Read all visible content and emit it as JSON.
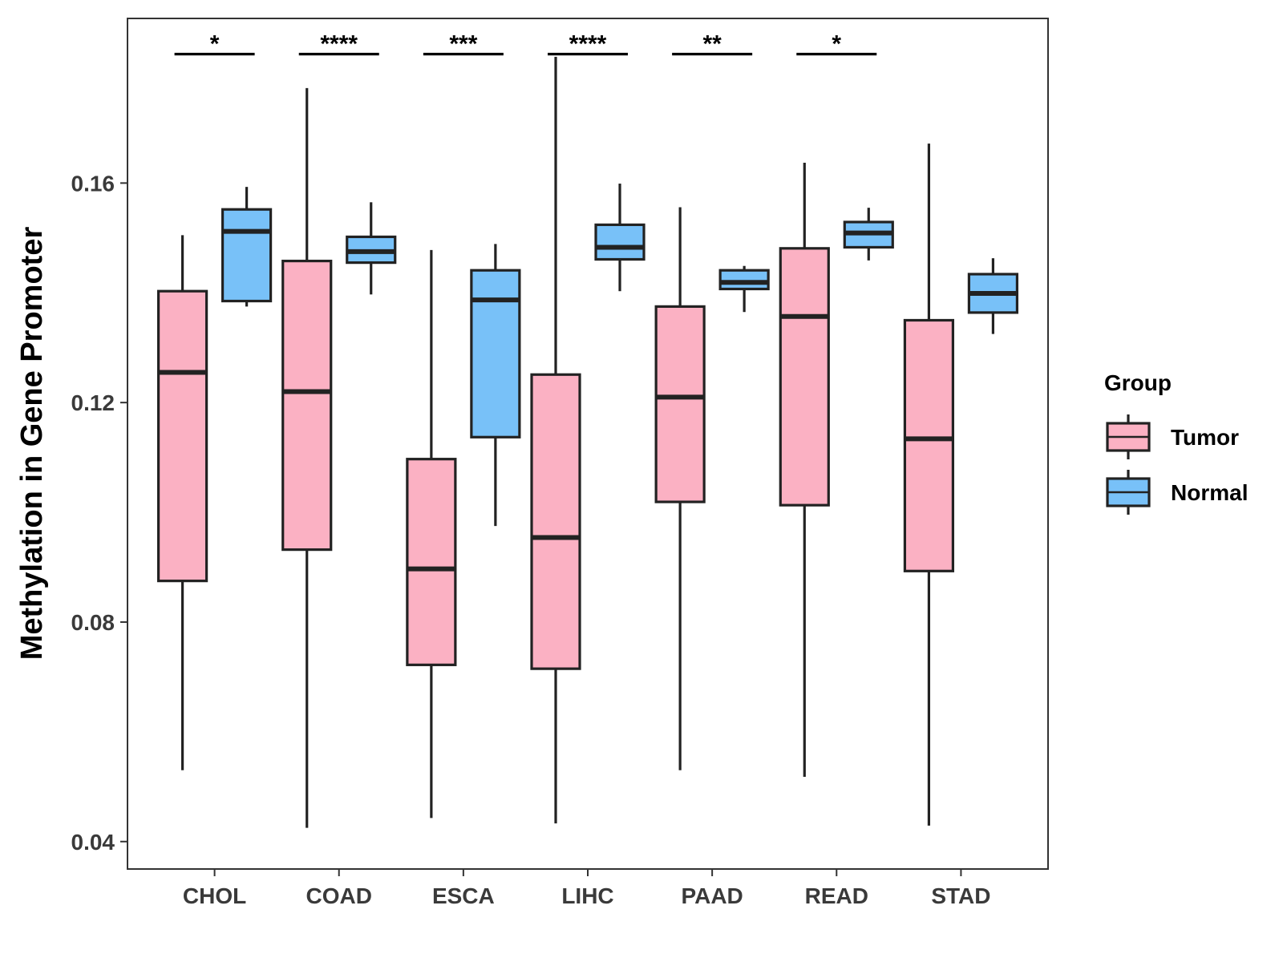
{
  "chart_data": {
    "type": "boxplot",
    "title": "",
    "xlabel": "",
    "ylabel": "Methylation in Gene Promoter",
    "ylim": [
      0.035,
      0.19
    ],
    "yticks": [
      0.04,
      0.08,
      0.12,
      0.16
    ],
    "ytick_labels": [
      "0.04",
      "0.08",
      "0.12",
      "0.16"
    ],
    "categories": [
      "CHOL",
      "COAD",
      "ESCA",
      "LIHC",
      "PAAD",
      "READ",
      "STAD"
    ],
    "legend": {
      "title": "Group",
      "position": "right",
      "entries": [
        {
          "key": "tumor",
          "label": "Tumor",
          "color": "#FBB1C3"
        },
        {
          "key": "normal",
          "label": "Normal",
          "color": "#78C1F8"
        }
      ]
    },
    "series": [
      {
        "name": "Tumor",
        "color": "#FBB1C3",
        "boxes": [
          {
            "category": "CHOL",
            "min": 0.053,
            "q1": 0.0875,
            "median": 0.1255,
            "q3": 0.1403,
            "max": 0.1505
          },
          {
            "category": "COAD",
            "min": 0.0425,
            "q1": 0.0932,
            "median": 0.122,
            "q3": 0.1458,
            "max": 0.1773
          },
          {
            "category": "ESCA",
            "min": 0.0443,
            "q1": 0.0722,
            "median": 0.0897,
            "q3": 0.1097,
            "max": 0.1478
          },
          {
            "category": "LIHC",
            "min": 0.0433,
            "q1": 0.0715,
            "median": 0.0954,
            "q3": 0.1251,
            "max": 0.183
          },
          {
            "category": "PAAD",
            "min": 0.053,
            "q1": 0.1019,
            "median": 0.121,
            "q3": 0.1375,
            "max": 0.1556
          },
          {
            "category": "READ",
            "min": 0.0518,
            "q1": 0.1013,
            "median": 0.1357,
            "q3": 0.1481,
            "max": 0.1637
          },
          {
            "category": "STAD",
            "min": 0.0429,
            "q1": 0.0893,
            "median": 0.1134,
            "q3": 0.135,
            "max": 0.1672
          }
        ]
      },
      {
        "name": "Normal",
        "color": "#78C1F8",
        "boxes": [
          {
            "category": "CHOL",
            "min": 0.1375,
            "q1": 0.1385,
            "median": 0.1512,
            "q3": 0.1552,
            "max": 0.1593
          },
          {
            "category": "COAD",
            "min": 0.1397,
            "q1": 0.1455,
            "median": 0.1475,
            "q3": 0.1502,
            "max": 0.1565
          },
          {
            "category": "ESCA",
            "min": 0.0975,
            "q1": 0.1137,
            "median": 0.1387,
            "q3": 0.1441,
            "max": 0.1489
          },
          {
            "category": "LIHC",
            "min": 0.1403,
            "q1": 0.1461,
            "median": 0.1483,
            "q3": 0.1524,
            "max": 0.1599
          },
          {
            "category": "PAAD",
            "min": 0.1365,
            "q1": 0.1407,
            "median": 0.1419,
            "q3": 0.1441,
            "max": 0.1449
          },
          {
            "category": "READ",
            "min": 0.1459,
            "q1": 0.1483,
            "median": 0.1509,
            "q3": 0.1529,
            "max": 0.1555
          },
          {
            "category": "STAD",
            "min": 0.1325,
            "q1": 0.1364,
            "median": 0.1399,
            "q3": 0.1434,
            "max": 0.1463
          }
        ]
      }
    ],
    "annotations": [
      {
        "category": "CHOL",
        "label": "*"
      },
      {
        "category": "COAD",
        "label": "****"
      },
      {
        "category": "ESCA",
        "label": "***"
      },
      {
        "category": "LIHC",
        "label": "****"
      },
      {
        "category": "PAAD",
        "label": "**"
      },
      {
        "category": "READ",
        "label": "*"
      }
    ],
    "annotation_level": 0.1835
  }
}
